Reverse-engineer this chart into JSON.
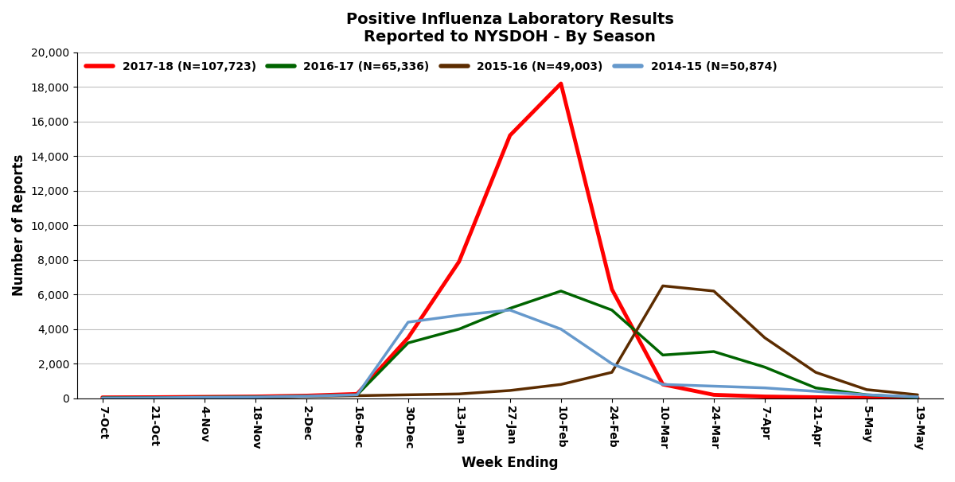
{
  "title_line1": "Positive Influenza Laboratory Results",
  "title_line2": "Reported to NYSDOH - By Season",
  "xlabel": "Week Ending",
  "ylabel": "Number of Reports",
  "ylim": [
    0,
    20000
  ],
  "yticks": [
    0,
    2000,
    4000,
    6000,
    8000,
    10000,
    12000,
    14000,
    16000,
    18000,
    20000
  ],
  "x_labels": [
    "7-Oct",
    "21-Oct",
    "4-Nov",
    "18-Nov",
    "2-Dec",
    "16-Dec",
    "30-Dec",
    "13-Jan",
    "27-Jan",
    "10-Feb",
    "24-Feb",
    "10-Mar",
    "24-Mar",
    "7-Apr",
    "21-Apr",
    "5-May",
    "19-May"
  ],
  "series": {
    "2017-18 (N=107,723)": {
      "color": "#FF0000",
      "linewidth": 3.5,
      "values": [
        50,
        60,
        80,
        100,
        150,
        250,
        3500,
        7900,
        15200,
        18200,
        6300,
        800,
        200,
        100,
        60,
        30,
        20
      ]
    },
    "2016-17 (N=65,336)": {
      "color": "#006400",
      "linewidth": 2.5,
      "values": [
        30,
        40,
        60,
        80,
        120,
        200,
        3200,
        4000,
        5200,
        6200,
        5100,
        2500,
        2700,
        1800,
        600,
        200,
        50
      ]
    },
    "2015-16 (N=49,003)": {
      "color": "#5C2C00",
      "linewidth": 2.5,
      "values": [
        20,
        30,
        50,
        60,
        100,
        150,
        200,
        250,
        450,
        800,
        1500,
        6500,
        6200,
        3500,
        1500,
        500,
        200
      ]
    },
    "2014-15 (N=50,874)": {
      "color": "#6699CC",
      "linewidth": 2.5,
      "values": [
        20,
        30,
        50,
        70,
        120,
        200,
        4400,
        4800,
        5100,
        4000,
        2000,
        800,
        700,
        600,
        400,
        200,
        80
      ]
    }
  },
  "legend_order": [
    "2017-18 (N=107,723)",
    "2016-17 (N=65,336)",
    "2015-16 (N=49,003)",
    "2014-15 (N=50,874)"
  ],
  "background_color": "#FFFFFF",
  "grid_color": "#C0C0C0",
  "title_fontsize": 14,
  "axis_fontsize": 12,
  "tick_fontsize": 10,
  "legend_fontsize": 10
}
